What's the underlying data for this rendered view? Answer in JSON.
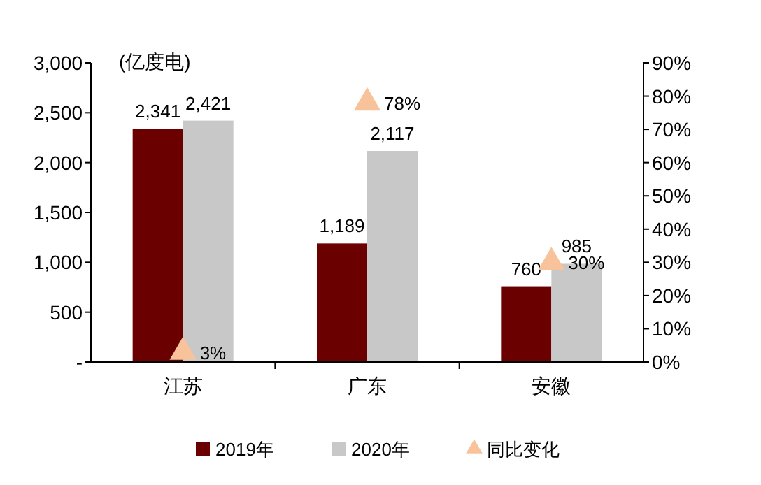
{
  "chart_data": {
    "type": "bar",
    "ylabel": "(亿度电)",
    "categories": [
      "江苏",
      "广东",
      "安徽"
    ],
    "series": [
      {
        "name": "2019年",
        "color": "#6b0000",
        "values": [
          2341,
          1189,
          760
        ],
        "value_labels": [
          "2,341",
          "1,189",
          "760"
        ]
      },
      {
        "name": "2020年",
        "color": "#c8c8c8",
        "values": [
          2421,
          2117,
          985
        ],
        "value_labels": [
          "2,421",
          "2,117",
          "985"
        ]
      },
      {
        "name": "同比变化",
        "type": "scatter",
        "axis": "y2",
        "marker": "triangle",
        "color": "#f8c39b",
        "values": [
          3,
          78,
          30
        ],
        "value_labels": [
          "3%",
          "78%",
          "30%"
        ]
      }
    ],
    "ylim": [
      0,
      3000
    ],
    "yticks": [
      {
        "value": 0,
        "label": "-"
      },
      {
        "value": 500,
        "label": "500"
      },
      {
        "value": 1000,
        "label": "1,000"
      },
      {
        "value": 1500,
        "label": "1,500"
      },
      {
        "value": 2000,
        "label": "2,000"
      },
      {
        "value": 2500,
        "label": "2,500"
      },
      {
        "value": 3000,
        "label": "3,000"
      }
    ],
    "y2lim": [
      0,
      90
    ],
    "y2ticks": [
      {
        "value": 0,
        "label": "0%"
      },
      {
        "value": 10,
        "label": "10%"
      },
      {
        "value": 20,
        "label": "20%"
      },
      {
        "value": 30,
        "label": "30%"
      },
      {
        "value": 40,
        "label": "40%"
      },
      {
        "value": 50,
        "label": "50%"
      },
      {
        "value": 60,
        "label": "60%"
      },
      {
        "value": 70,
        "label": "70%"
      },
      {
        "value": 80,
        "label": "80%"
      },
      {
        "value": 90,
        "label": "90%"
      }
    ],
    "grid": false,
    "legend": "bottom"
  }
}
